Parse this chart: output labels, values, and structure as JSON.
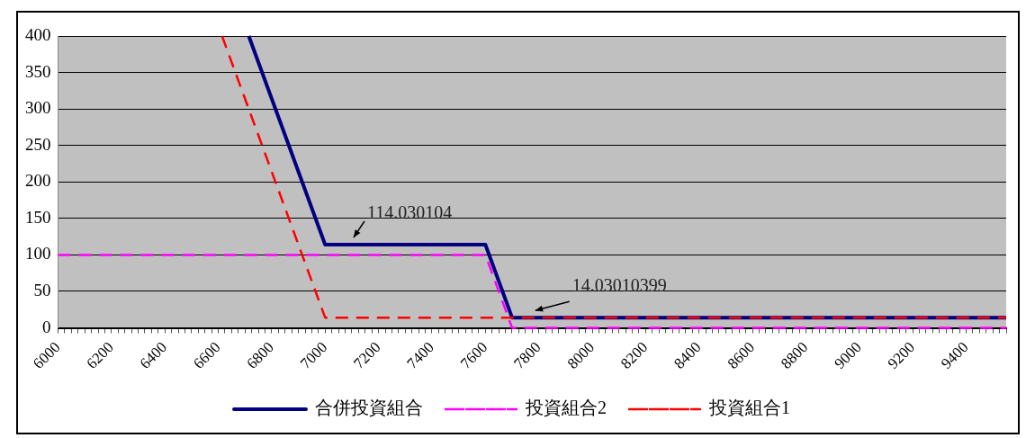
{
  "chart_data": {
    "type": "line",
    "xlim": [
      6000,
      9550
    ],
    "ylim": [
      0,
      400
    ],
    "xticks": [
      6000,
      {
        "value": 6025,
        "label": null
      },
      {
        "value": 6050,
        "label": null
      },
      {
        "value": 6075,
        "label": null
      },
      {
        "value": 6100,
        "label": null
      },
      {
        "value": 6125,
        "label": null
      },
      {
        "value": 6150,
        "label": null
      },
      {
        "value": 6175,
        "label": null
      },
      6200,
      {
        "value": 6225,
        "label": null
      },
      {
        "value": 6250,
        "label": null
      },
      {
        "value": 6275,
        "label": null
      },
      {
        "value": 6300,
        "label": null
      },
      {
        "value": 6325,
        "label": null
      },
      {
        "value": 6350,
        "label": null
      },
      {
        "value": 6375,
        "label": null
      },
      6400,
      {
        "value": 6425,
        "label": null
      },
      {
        "value": 6450,
        "label": null
      },
      {
        "value": 6475,
        "label": null
      },
      {
        "value": 6500,
        "label": null
      },
      {
        "value": 6525,
        "label": null
      },
      {
        "value": 6550,
        "label": null
      },
      {
        "value": 6575,
        "label": null
      },
      6600,
      {
        "value": 6625,
        "label": null
      },
      {
        "value": 6650,
        "label": null
      },
      {
        "value": 6675,
        "label": null
      },
      {
        "value": 6700,
        "label": null
      },
      {
        "value": 6725,
        "label": null
      },
      {
        "value": 6750,
        "label": null
      },
      {
        "value": 6775,
        "label": null
      },
      6800,
      {
        "value": 6825,
        "label": null
      },
      {
        "value": 6850,
        "label": null
      },
      {
        "value": 6875,
        "label": null
      },
      {
        "value": 6900,
        "label": null
      },
      {
        "value": 6925,
        "label": null
      },
      {
        "value": 6950,
        "label": null
      },
      {
        "value": 6975,
        "label": null
      },
      7000,
      {
        "value": 7025,
        "label": null
      },
      {
        "value": 7050,
        "label": null
      },
      {
        "value": 7075,
        "label": null
      },
      {
        "value": 7100,
        "label": null
      },
      {
        "value": 7125,
        "label": null
      },
      {
        "value": 7150,
        "label": null
      },
      {
        "value": 7175,
        "label": null
      },
      7200,
      {
        "value": 7225,
        "label": null
      },
      {
        "value": 7250,
        "label": null
      },
      {
        "value": 7275,
        "label": null
      },
      {
        "value": 7300,
        "label": null
      },
      {
        "value": 7325,
        "label": null
      },
      {
        "value": 7350,
        "label": null
      },
      {
        "value": 7375,
        "label": null
      },
      7400,
      {
        "value": 7425,
        "label": null
      },
      {
        "value": 7450,
        "label": null
      },
      {
        "value": 7475,
        "label": null
      },
      {
        "value": 7500,
        "label": null
      },
      {
        "value": 7525,
        "label": null
      },
      {
        "value": 7550,
        "label": null
      },
      {
        "value": 7575,
        "label": null
      },
      7600,
      {
        "value": 7625,
        "label": null
      },
      {
        "value": 7650,
        "label": null
      },
      {
        "value": 7675,
        "label": null
      },
      {
        "value": 7700,
        "label": null
      },
      {
        "value": 7725,
        "label": null
      },
      {
        "value": 7750,
        "label": null
      },
      {
        "value": 7775,
        "label": null
      },
      7800,
      {
        "value": 7825,
        "label": null
      },
      {
        "value": 7850,
        "label": null
      },
      {
        "value": 7875,
        "label": null
      },
      {
        "value": 7900,
        "label": null
      },
      {
        "value": 7925,
        "label": null
      },
      {
        "value": 7950,
        "label": null
      },
      {
        "value": 7975,
        "label": null
      },
      8000,
      {
        "value": 8025,
        "label": null
      },
      {
        "value": 8050,
        "label": null
      },
      {
        "value": 8075,
        "label": null
      },
      {
        "value": 8100,
        "label": null
      },
      {
        "value": 8125,
        "label": null
      },
      {
        "value": 8150,
        "label": null
      },
      {
        "value": 8175,
        "label": null
      },
      8200,
      {
        "value": 8225,
        "label": null
      },
      {
        "value": 8250,
        "label": null
      },
      {
        "value": 8275,
        "label": null
      },
      {
        "value": 8300,
        "label": null
      },
      {
        "value": 8325,
        "label": null
      },
      {
        "value": 8350,
        "label": null
      },
      {
        "value": 8375,
        "label": null
      },
      8400,
      {
        "value": 8425,
        "label": null
      },
      {
        "value": 8450,
        "label": null
      },
      {
        "value": 8475,
        "label": null
      },
      {
        "value": 8500,
        "label": null
      },
      {
        "value": 8525,
        "label": null
      },
      {
        "value": 8550,
        "label": null
      },
      {
        "value": 8575,
        "label": null
      },
      8600,
      {
        "value": 8625,
        "label": null
      },
      {
        "value": 8650,
        "label": null
      },
      {
        "value": 8675,
        "label": null
      },
      {
        "value": 8700,
        "label": null
      },
      {
        "value": 8725,
        "label": null
      },
      {
        "value": 8750,
        "label": null
      },
      {
        "value": 8775,
        "label": null
      },
      8800,
      {
        "value": 8825,
        "label": null
      },
      {
        "value": 8850,
        "label": null
      },
      {
        "value": 8875,
        "label": null
      },
      {
        "value": 8900,
        "label": null
      },
      {
        "value": 8925,
        "label": null
      },
      {
        "value": 8950,
        "label": null
      },
      {
        "value": 8975,
        "label": null
      },
      9000,
      {
        "value": 9025,
        "label": null
      },
      {
        "value": 9050,
        "label": null
      },
      {
        "value": 9075,
        "label": null
      },
      {
        "value": 9100,
        "label": null
      },
      {
        "value": 9125,
        "label": null
      },
      {
        "value": 9150,
        "label": null
      },
      {
        "value": 9175,
        "label": null
      },
      9200,
      {
        "value": 9225,
        "label": null
      },
      {
        "value": 9250,
        "label": null
      },
      {
        "value": 9275,
        "label": null
      },
      {
        "value": 9300,
        "label": null
      },
      {
        "value": 9325,
        "label": null
      },
      {
        "value": 9350,
        "label": null
      },
      {
        "value": 9375,
        "label": null
      },
      9400,
      {
        "value": 9425,
        "label": null
      },
      {
        "value": 9450,
        "label": null
      },
      {
        "value": 9475,
        "label": null
      },
      {
        "value": 9500,
        "label": null
      },
      {
        "value": 9525,
        "label": null
      },
      {
        "value": 9550,
        "label": null
      }
    ],
    "yticks": [
      0,
      50,
      100,
      150,
      200,
      250,
      300,
      350,
      400
    ],
    "grid": "y",
    "legend": "bottom",
    "marker": "none",
    "series": [
      {
        "name": "合併投資組合",
        "color": "#000080",
        "line_style": "solid",
        "x": [
          6714,
          7000,
          7600,
          7700,
          9550
        ],
        "values": [
          400,
          114.030104,
          114.030104,
          14.03010399,
          14.03010399
        ]
      },
      {
        "name": "投資組合2",
        "color": "#ff00ff",
        "line_style": "dashed",
        "x": [
          6000,
          7600,
          7700,
          9550
        ],
        "values": [
          100,
          100,
          0,
          0
        ]
      },
      {
        "name": "投資組合1",
        "color": "#ff0000",
        "line_style": "dashed",
        "x": [
          6614,
          7000,
          9550
        ],
        "values": [
          400,
          14.03010399,
          14.03010399
        ]
      }
    ],
    "annotations": [
      {
        "text": "114.030104",
        "x": 7100,
        "y": 114.030104
      },
      {
        "text": "14.03010399",
        "x": 7780,
        "y": 14.03010399
      }
    ]
  }
}
